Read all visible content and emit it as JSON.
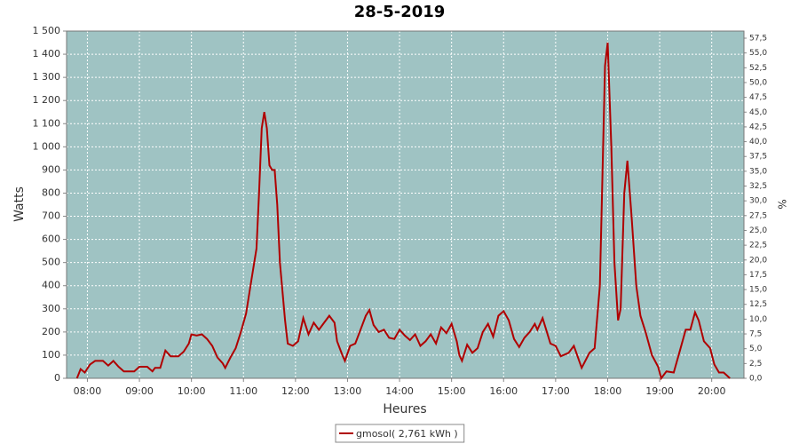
{
  "chart_data": {
    "type": "line",
    "title": "28-5-2019",
    "x_label": "Heures",
    "y_label": "Watts",
    "y2_label": "%",
    "legend": "bottom",
    "grid": true,
    "xlim": [
      7.6,
      20.62
    ],
    "xticks": [
      {
        "value": 8,
        "label": "08:00"
      },
      {
        "value": 9,
        "label": "09:00"
      },
      {
        "value": 10,
        "label": "10:00"
      },
      {
        "value": 11,
        "label": "11:00"
      },
      {
        "value": 12,
        "label": "12:00"
      },
      {
        "value": 13,
        "label": "13:00"
      },
      {
        "value": 14,
        "label": "14:00"
      },
      {
        "value": 15,
        "label": "15:00"
      },
      {
        "value": 16,
        "label": "16:00"
      },
      {
        "value": 17,
        "label": "17:00"
      },
      {
        "value": 18,
        "label": "18:00"
      },
      {
        "value": 19,
        "label": "19:00"
      },
      {
        "value": 20,
        "label": "20:00"
      }
    ],
    "ylim": [
      0,
      1500
    ],
    "yticks": [
      0,
      100,
      200,
      300,
      400,
      500,
      600,
      700,
      800,
      900,
      {
        "value": 1000,
        "label": "1 000"
      },
      {
        "value": 1100,
        "label": "1 100"
      },
      {
        "value": 1200,
        "label": "1 200"
      },
      {
        "value": 1300,
        "label": "1 300"
      },
      {
        "value": 1400,
        "label": "1 400"
      },
      {
        "value": 1500,
        "label": "1 500"
      }
    ],
    "y2lim": [
      0,
      58.7
    ],
    "y2ticks": [
      {
        "value": 0,
        "label": "0,0"
      },
      {
        "value": 2.5,
        "label": "2,5"
      },
      {
        "value": 5,
        "label": "5,0"
      },
      {
        "value": 7.5,
        "label": "7,5"
      },
      {
        "value": 10,
        "label": "10,0"
      },
      {
        "value": 12.5,
        "label": "12,5"
      },
      {
        "value": 15,
        "label": "15,0"
      },
      {
        "value": 17.5,
        "label": "17,5"
      },
      {
        "value": 20,
        "label": "20,0"
      },
      {
        "value": 22.5,
        "label": "22,5"
      },
      {
        "value": 25,
        "label": "25,0"
      },
      {
        "value": 27.5,
        "label": "27,5"
      },
      {
        "value": 30,
        "label": "30,0"
      },
      {
        "value": 32.5,
        "label": "32,5"
      },
      {
        "value": 35,
        "label": "35,0"
      },
      {
        "value": 37.5,
        "label": "37,5"
      },
      {
        "value": 40,
        "label": "40,0"
      },
      {
        "value": 42.5,
        "label": "42,5"
      },
      {
        "value": 45,
        "label": "45,0"
      },
      {
        "value": 47.5,
        "label": "47,5"
      },
      {
        "value": 50,
        "label": "50,0"
      },
      {
        "value": 52.5,
        "label": "52,5"
      },
      {
        "value": 55,
        "label": "55,0"
      },
      {
        "value": 57.5,
        "label": "57,5"
      }
    ],
    "x": [
      7.8,
      7.87,
      7.95,
      8.05,
      8.15,
      8.3,
      8.4,
      8.5,
      8.6,
      8.7,
      8.9,
      9.0,
      9.15,
      9.25,
      9.3,
      9.4,
      9.5,
      9.6,
      9.75,
      9.85,
      9.95,
      10.0,
      10.1,
      10.2,
      10.3,
      10.4,
      10.5,
      10.6,
      10.65,
      10.75,
      10.85,
      10.95,
      11.05,
      11.15,
      11.25,
      11.3,
      11.35,
      11.4,
      11.45,
      11.5,
      11.55,
      11.6,
      11.65,
      11.7,
      11.8,
      11.85,
      11.95,
      12.05,
      12.15,
      12.25,
      12.35,
      12.45,
      12.55,
      12.65,
      12.75,
      12.8,
      12.9,
      12.95,
      13.05,
      13.15,
      13.25,
      13.35,
      13.42,
      13.5,
      13.6,
      13.7,
      13.8,
      13.9,
      14.0,
      14.1,
      14.2,
      14.3,
      14.4,
      14.5,
      14.6,
      14.7,
      14.8,
      14.9,
      15.0,
      15.1,
      15.15,
      15.2,
      15.3,
      15.4,
      15.5,
      15.6,
      15.7,
      15.8,
      15.9,
      16.0,
      16.1,
      16.2,
      16.3,
      16.4,
      16.5,
      16.6,
      16.65,
      16.75,
      16.9,
      17.0,
      17.1,
      17.25,
      17.35,
      17.5,
      17.65,
      17.75,
      17.85,
      17.95,
      18.0,
      18.07,
      18.13,
      18.2,
      18.25,
      18.32,
      18.38,
      18.46,
      18.55,
      18.63,
      18.73,
      18.85,
      18.97,
      19.03,
      19.13,
      19.27,
      19.39,
      19.5,
      19.59,
      19.68,
      19.75,
      19.85,
      19.97,
      20.05,
      20.14,
      20.23,
      20.35
    ],
    "series": [
      {
        "name": "gmosol( 2,761 kWh )",
        "color": "#b00000",
        "values": [
          0,
          40,
          25,
          60,
          75,
          75,
          55,
          75,
          50,
          30,
          30,
          50,
          50,
          30,
          45,
          45,
          120,
          95,
          95,
          115,
          150,
          190,
          185,
          190,
          170,
          140,
          90,
          65,
          45,
          90,
          130,
          200,
          280,
          420,
          560,
          800,
          1080,
          1150,
          1080,
          920,
          900,
          900,
          750,
          500,
          250,
          150,
          140,
          160,
          260,
          190,
          240,
          210,
          240,
          270,
          240,
          160,
          100,
          75,
          140,
          150,
          210,
          270,
          295,
          230,
          200,
          210,
          175,
          170,
          210,
          185,
          165,
          190,
          140,
          160,
          190,
          150,
          220,
          195,
          235,
          160,
          100,
          75,
          145,
          110,
          130,
          200,
          235,
          180,
          270,
          290,
          250,
          170,
          135,
          175,
          200,
          235,
          210,
          260,
          150,
          140,
          95,
          110,
          140,
          45,
          110,
          130,
          400,
          1350,
          1450,
          1000,
          500,
          250,
          300,
          800,
          940,
          700,
          400,
          270,
          200,
          100,
          50,
          0,
          30,
          25,
          120,
          210,
          210,
          285,
          250,
          160,
          130,
          60,
          25,
          25,
          0
        ]
      }
    ]
  }
}
